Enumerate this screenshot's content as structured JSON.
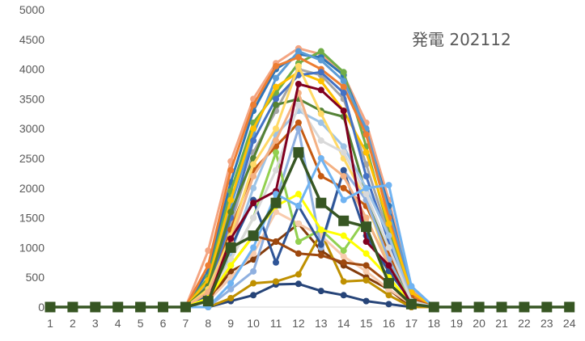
{
  "chart_data": {
    "type": "line",
    "title": "発電 202112",
    "xlabel": "",
    "ylabel": "",
    "ylim": [
      0,
      5000
    ],
    "yticks": [
      "0",
      "500",
      "1000",
      "1500",
      "2000",
      "2500",
      "3000",
      "3500",
      "4000",
      "4500",
      "5000"
    ],
    "x": [
      "1",
      "2",
      "3",
      "4",
      "5",
      "6",
      "7",
      "8",
      "9",
      "10",
      "11",
      "12",
      "13",
      "14",
      "15",
      "16",
      "17",
      "18",
      "19",
      "20",
      "21",
      "22",
      "23",
      "24"
    ],
    "gridlines": false,
    "legend": "none",
    "series": [
      {
        "color": "#f4a582",
        "values": [
          0,
          0,
          0,
          0,
          0,
          0,
          0,
          950,
          2450,
          3500,
          4100,
          4350,
          4250,
          3900,
          3100,
          1800,
          300,
          0,
          0,
          0,
          0,
          0,
          0,
          0
        ]
      },
      {
        "color": "#2e75b6",
        "values": [
          0,
          0,
          0,
          0,
          0,
          0,
          0,
          600,
          2100,
          3300,
          4000,
          4250,
          4200,
          3900,
          2950,
          1700,
          250,
          0,
          0,
          0,
          0,
          0,
          0,
          0
        ]
      },
      {
        "color": "#70ad47",
        "values": [
          0,
          0,
          0,
          0,
          0,
          0,
          0,
          500,
          1950,
          3100,
          3600,
          4100,
          4300,
          3950,
          2700,
          1300,
          200,
          0,
          0,
          0,
          0,
          0,
          0,
          0
        ]
      },
      {
        "color": "#5b9bd5",
        "values": [
          0,
          0,
          0,
          0,
          0,
          0,
          0,
          400,
          1700,
          2900,
          3850,
          4300,
          4150,
          3800,
          3000,
          1600,
          350,
          0,
          0,
          0,
          0,
          0,
          0,
          0
        ]
      },
      {
        "color": "#ed7d31",
        "values": [
          0,
          0,
          0,
          0,
          0,
          0,
          0,
          700,
          2300,
          3400,
          4050,
          4200,
          4000,
          3700,
          2900,
          1500,
          200,
          0,
          0,
          0,
          0,
          0,
          0,
          0
        ]
      },
      {
        "color": "#a5a5a5",
        "values": [
          0,
          0,
          0,
          0,
          0,
          0,
          0,
          300,
          1400,
          2600,
          3300,
          4000,
          3900,
          3500,
          2400,
          1200,
          150,
          0,
          0,
          0,
          0,
          0,
          0,
          0
        ]
      },
      {
        "color": "#ffc000",
        "values": [
          0,
          0,
          0,
          0,
          0,
          0,
          0,
          450,
          1800,
          3000,
          3700,
          3950,
          3800,
          3300,
          2600,
          1400,
          250,
          0,
          0,
          0,
          0,
          0,
          0,
          0
        ]
      },
      {
        "color": "#4472c4",
        "values": [
          0,
          0,
          0,
          0,
          0,
          0,
          0,
          250,
          1500,
          2800,
          3500,
          3900,
          3950,
          3600,
          2200,
          1100,
          100,
          0,
          0,
          0,
          0,
          0,
          0,
          0
        ]
      },
      {
        "color": "#548235",
        "values": [
          0,
          0,
          0,
          0,
          0,
          0,
          0,
          350,
          1600,
          2500,
          3400,
          3500,
          3300,
          3200,
          1900,
          900,
          100,
          0,
          0,
          0,
          0,
          0,
          0,
          0
        ]
      },
      {
        "color": "#c55a11",
        "values": [
          0,
          0,
          0,
          0,
          0,
          0,
          0,
          200,
          1300,
          2300,
          2700,
          3100,
          2200,
          2000,
          1700,
          900,
          150,
          0,
          0,
          0,
          0,
          0,
          0,
          0
        ]
      },
      {
        "color": "#9dc3e6",
        "values": [
          0,
          0,
          0,
          0,
          0,
          0,
          0,
          150,
          900,
          2000,
          2900,
          3300,
          3100,
          2700,
          2000,
          1200,
          100,
          0,
          0,
          0,
          0,
          0,
          0,
          0
        ]
      },
      {
        "color": "#ffd966",
        "values": [
          0,
          0,
          0,
          0,
          0,
          0,
          0,
          300,
          1200,
          2400,
          3000,
          4050,
          3250,
          2500,
          1800,
          700,
          100,
          0,
          0,
          0,
          0,
          0,
          0,
          0
        ]
      },
      {
        "color": "#843c0c",
        "values": [
          0,
          0,
          0,
          0,
          0,
          0,
          0,
          100,
          600,
          800,
          1100,
          1400,
          950,
          700,
          500,
          300,
          0,
          0,
          0,
          0,
          0,
          0,
          0,
          0
        ]
      },
      {
        "color": "#264478",
        "values": [
          0,
          0,
          0,
          0,
          0,
          0,
          0,
          0,
          100,
          200,
          380,
          390,
          270,
          200,
          100,
          50,
          0,
          0,
          0,
          0,
          0,
          0,
          0,
          0
        ]
      },
      {
        "color": "#bf9000",
        "values": [
          0,
          0,
          0,
          0,
          0,
          0,
          0,
          0,
          150,
          400,
          430,
          550,
          1250,
          430,
          450,
          200,
          0,
          0,
          0,
          0,
          0,
          0,
          0,
          0
        ]
      },
      {
        "color": "#f8cbad",
        "values": [
          0,
          0,
          0,
          0,
          0,
          0,
          0,
          100,
          500,
          900,
          1600,
          1400,
          1200,
          850,
          600,
          300,
          50,
          0,
          0,
          0,
          0,
          0,
          0,
          0
        ]
      },
      {
        "color": "#8fb0e0",
        "values": [
          0,
          0,
          0,
          0,
          0,
          0,
          0,
          0,
          300,
          600,
          1800,
          3000,
          1000,
          2300,
          1800,
          800,
          50,
          0,
          0,
          0,
          0,
          0,
          0,
          0
        ]
      },
      {
        "color": "#92d050",
        "values": [
          0,
          0,
          0,
          0,
          0,
          0,
          0,
          200,
          800,
          1500,
          2600,
          1100,
          1300,
          950,
          1500,
          700,
          100,
          0,
          0,
          0,
          0,
          0,
          0,
          0
        ]
      },
      {
        "color": "#2f5597",
        "values": [
          0,
          0,
          0,
          0,
          0,
          0,
          0,
          200,
          1000,
          1800,
          750,
          1700,
          1050,
          2300,
          1200,
          600,
          100,
          0,
          0,
          0,
          0,
          0,
          0,
          0
        ]
      },
      {
        "color": "#9e480e",
        "values": [
          0,
          0,
          0,
          0,
          0,
          0,
          0,
          100,
          700,
          1200,
          1100,
          900,
          870,
          750,
          700,
          400,
          50,
          0,
          0,
          0,
          0,
          0,
          0,
          0
        ]
      },
      {
        "color": "#d9d9d9",
        "values": [
          0,
          0,
          0,
          0,
          0,
          0,
          0,
          150,
          800,
          1500,
          2300,
          3400,
          2800,
          2600,
          1900,
          1000,
          100,
          0,
          0,
          0,
          0,
          0,
          0,
          0
        ]
      },
      {
        "color": "#f4b183",
        "values": [
          0,
          0,
          0,
          0,
          0,
          0,
          0,
          250,
          1100,
          2200,
          2800,
          3600,
          2500,
          2200,
          1500,
          700,
          50,
          0,
          0,
          0,
          0,
          0,
          0,
          0
        ]
      },
      {
        "color": "#ffff00",
        "values": [
          0,
          0,
          0,
          0,
          0,
          0,
          0,
          150,
          700,
          1200,
          1700,
          1900,
          1300,
          1200,
          900,
          500,
          50,
          0,
          0,
          0,
          0,
          0,
          0,
          0
        ]
      },
      {
        "color": "#800020",
        "values": [
          0,
          0,
          0,
          0,
          0,
          0,
          0,
          100,
          1150,
          1750,
          1950,
          3750,
          3650,
          3300,
          1100,
          700,
          50,
          0,
          0,
          0,
          0,
          0,
          0,
          0
        ]
      },
      {
        "color": "#6fb3f2",
        "values": [
          0,
          0,
          0,
          0,
          0,
          0,
          0,
          0,
          400,
          1000,
          1900,
          1700,
          2500,
          1800,
          2000,
          2050,
          350,
          0,
          0,
          0,
          0,
          0,
          0,
          0
        ]
      },
      {
        "color": "#375623",
        "marker": "square",
        "values": [
          0,
          0,
          0,
          0,
          0,
          0,
          0,
          100,
          1000,
          1200,
          1750,
          2600,
          1750,
          1450,
          1350,
          400,
          50,
          0,
          0,
          0,
          0,
          0,
          0,
          0
        ]
      }
    ]
  }
}
